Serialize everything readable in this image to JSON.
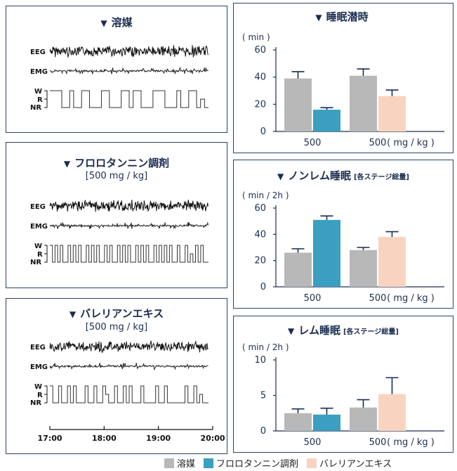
{
  "colors": {
    "vehicle": "#b8b8b8",
    "flolo": "#3a9fc0",
    "valerian": "#f8d4c0",
    "frame": "#2a4466",
    "text": "#1a2d4f"
  },
  "traces": [
    {
      "title": "溶媒",
      "subtitle": "",
      "eeg": "EEG",
      "emg": "EMG",
      "stage_w": "W",
      "stage_r": "R",
      "stage_nr": "NR"
    },
    {
      "title": "フロロタンニン調剤",
      "subtitle": "[500 mg / kg]",
      "eeg": "EEG",
      "emg": "EMG",
      "stage_w": "W",
      "stage_r": "R",
      "stage_nr": "NR"
    },
    {
      "title": "バレリアンエキス",
      "subtitle": "[500 mg / kg]",
      "eeg": "EEG",
      "emg": "EMG",
      "stage_w": "W",
      "stage_r": "R",
      "stage_nr": "NR",
      "time_ticks": [
        "17:00",
        "18:00",
        "19:00",
        "20:00"
      ]
    }
  ],
  "chart_data": [
    {
      "type": "bar",
      "title": "睡眠潜時",
      "title_suffix": "",
      "ylabel": "( min )",
      "ylim": [
        0,
        60
      ],
      "yticks": [
        0,
        20,
        40,
        60
      ],
      "categories": [
        "500",
        "500"
      ],
      "xunit": "( mg / kg )",
      "groups": [
        {
          "bars": [
            {
              "series": "溶媒",
              "value": 39,
              "err": 5
            },
            {
              "series": "フロロタンニン調剤",
              "value": 16,
              "err": 1.5
            }
          ]
        },
        {
          "bars": [
            {
              "series": "溶媒",
              "value": 41,
              "err": 5
            },
            {
              "series": "バレリアンエキス",
              "value": 26,
              "err": 4.5
            }
          ]
        }
      ]
    },
    {
      "type": "bar",
      "title": "ノンレム睡眠",
      "title_suffix": "[各ステージ総量]",
      "ylabel": "( min / 2h )",
      "ylim": [
        0,
        60
      ],
      "yticks": [
        0,
        20,
        40,
        60
      ],
      "categories": [
        "500",
        "500"
      ],
      "xunit": "( mg / kg )",
      "groups": [
        {
          "bars": [
            {
              "series": "溶媒",
              "value": 26,
              "err": 3
            },
            {
              "series": "フロロタンニン調剤",
              "value": 51,
              "err": 3
            }
          ]
        },
        {
          "bars": [
            {
              "series": "溶媒",
              "value": 28,
              "err": 2
            },
            {
              "series": "バレリアンエキス",
              "value": 38,
              "err": 4
            }
          ]
        }
      ]
    },
    {
      "type": "bar",
      "title": "レム睡眠",
      "title_suffix": "[各ステージ総量]",
      "ylabel": "( min / 2h )",
      "ylim": [
        0,
        10
      ],
      "yticks": [
        0,
        5,
        10
      ],
      "categories": [
        "500",
        "500"
      ],
      "xunit": "( mg / kg )",
      "groups": [
        {
          "bars": [
            {
              "series": "溶媒",
              "value": 2.5,
              "err": 0.6
            },
            {
              "series": "フロロタンニン調剤",
              "value": 2.3,
              "err": 0.9
            }
          ]
        },
        {
          "bars": [
            {
              "series": "溶媒",
              "value": 3.3,
              "err": 1.1
            },
            {
              "series": "バレリアンエキス",
              "value": 5.2,
              "err": 2.3
            }
          ]
        }
      ]
    }
  ],
  "legend": [
    {
      "label": "溶媒",
      "color": "#b8b8b8"
    },
    {
      "label": "フロロタンニン調剤",
      "color": "#3a9fc0"
    },
    {
      "label": "バレリアンエキス",
      "color": "#f8d4c0"
    }
  ]
}
